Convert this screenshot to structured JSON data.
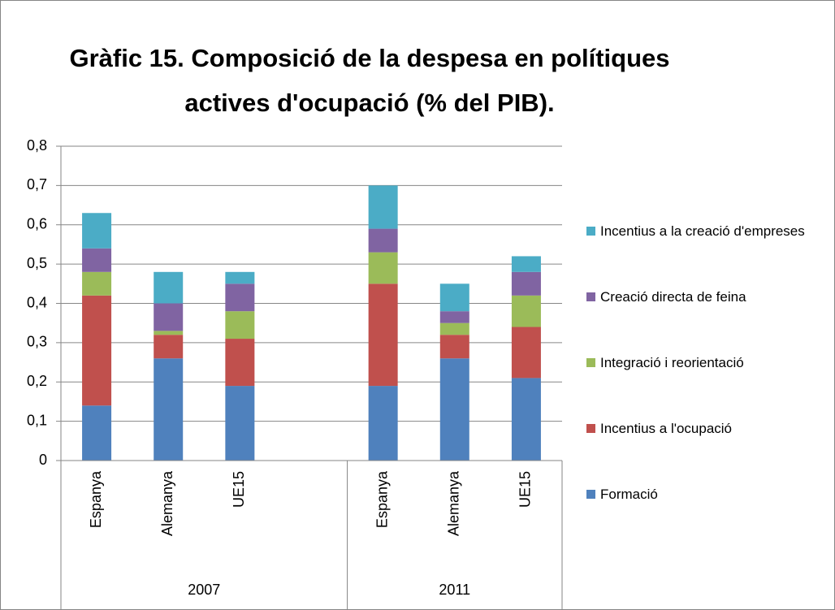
{
  "chart_data": {
    "type": "stacked-bar",
    "title": "Gràfic 15. Composició de la despesa en polítiques actives d'ocupació (% del PIB).",
    "groups": [
      {
        "label": "2007",
        "categories": [
          "Espanya",
          "Alemanya",
          "UE15",
          null
        ]
      },
      {
        "label": "2011",
        "categories": [
          "Espanya",
          "Alemanya",
          "UE15"
        ]
      }
    ],
    "series": [
      {
        "name": "Formació",
        "color": "#4f81bd",
        "values": [
          0.14,
          0.26,
          0.19,
          null,
          0.19,
          0.26,
          0.21
        ]
      },
      {
        "name": "Incentius a l'ocupació",
        "color": "#c0504d",
        "values": [
          0.28,
          0.06,
          0.12,
          null,
          0.26,
          0.06,
          0.13
        ]
      },
      {
        "name": "Integració i reorientació",
        "color": "#9bbb59",
        "values": [
          0.06,
          0.01,
          0.07,
          null,
          0.08,
          0.03,
          0.08
        ]
      },
      {
        "name": "Creació directa de feina",
        "color": "#8064a2",
        "values": [
          0.06,
          0.07,
          0.07,
          null,
          0.06,
          0.03,
          0.06
        ]
      },
      {
        "name": "Incentius a la creació d'empreses",
        "color": "#4bacc6",
        "values": [
          0.09,
          0.08,
          0.03,
          null,
          0.11,
          0.07,
          0.04
        ]
      }
    ],
    "ylim": [
      0,
      0.8
    ],
    "yticks": [
      0,
      {
        "value": 0.1,
        "label": "0,1"
      },
      {
        "value": 0.2,
        "label": "0,2"
      },
      {
        "value": 0.3,
        "label": "0,3"
      },
      {
        "value": 0.4,
        "label": "0,4"
      },
      {
        "value": 0.5,
        "label": "0,5"
      },
      {
        "value": 0.6,
        "label": "0,6"
      },
      {
        "value": 0.7,
        "label": "0,7"
      },
      {
        "value": 0.8,
        "label": "0,8"
      }
    ],
    "grid": true,
    "legend": "right"
  }
}
